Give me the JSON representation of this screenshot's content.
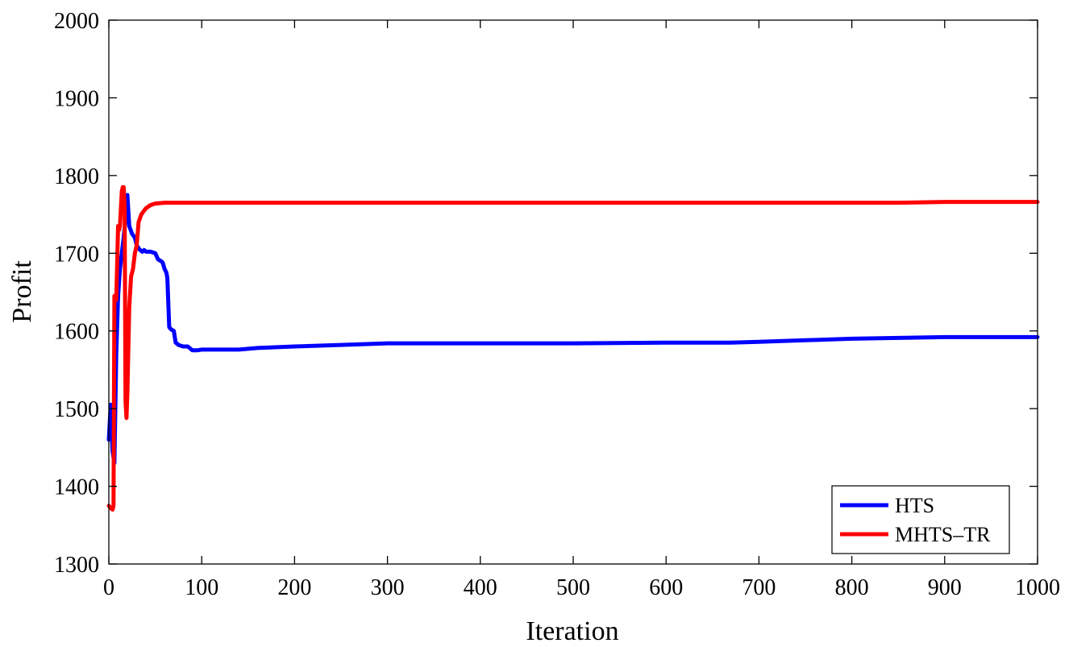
{
  "chart_data": {
    "type": "line",
    "title": "",
    "xlabel": "Iteration",
    "ylabel": "Profit",
    "xlim": [
      0,
      1000
    ],
    "ylim": [
      1300,
      2000
    ],
    "xticks": [
      0,
      100,
      200,
      300,
      400,
      500,
      600,
      700,
      800,
      900,
      1000
    ],
    "yticks": [
      1300,
      1400,
      1500,
      1600,
      1700,
      1800,
      1900,
      2000
    ],
    "xtick_labels": [
      "0",
      "100",
      "200",
      "300",
      "400",
      "500",
      "600",
      "700",
      "800",
      "900",
      "1000"
    ],
    "ytick_labels": [
      "1300",
      "1400",
      "1500",
      "1600",
      "1700",
      "1800",
      "1900",
      "2000"
    ],
    "grid": false,
    "legend_position": "bottom-right",
    "series": [
      {
        "name": "HTS",
        "color": "#0000ff",
        "points": [
          [
            0,
            1460
          ],
          [
            2,
            1505
          ],
          [
            4,
            1445
          ],
          [
            6,
            1430
          ],
          [
            8,
            1570
          ],
          [
            10,
            1645
          ],
          [
            12,
            1680
          ],
          [
            14,
            1700
          ],
          [
            16,
            1720
          ],
          [
            18,
            1745
          ],
          [
            20,
            1775
          ],
          [
            22,
            1735
          ],
          [
            25,
            1725
          ],
          [
            28,
            1720
          ],
          [
            30,
            1710
          ],
          [
            33,
            1705
          ],
          [
            36,
            1702
          ],
          [
            38,
            1704
          ],
          [
            40,
            1702
          ],
          [
            45,
            1702
          ],
          [
            50,
            1700
          ],
          [
            53,
            1692
          ],
          [
            56,
            1690
          ],
          [
            58,
            1688
          ],
          [
            60,
            1680
          ],
          [
            62,
            1675
          ],
          [
            63,
            1668
          ],
          [
            65,
            1605
          ],
          [
            67,
            1602
          ],
          [
            70,
            1600
          ],
          [
            72,
            1585
          ],
          [
            75,
            1582
          ],
          [
            80,
            1580
          ],
          [
            85,
            1580
          ],
          [
            90,
            1575
          ],
          [
            95,
            1575
          ],
          [
            100,
            1576
          ],
          [
            120,
            1576
          ],
          [
            140,
            1576
          ],
          [
            160,
            1578
          ],
          [
            200,
            1580
          ],
          [
            250,
            1582
          ],
          [
            300,
            1584
          ],
          [
            400,
            1584
          ],
          [
            500,
            1584
          ],
          [
            600,
            1585
          ],
          [
            670,
            1585
          ],
          [
            700,
            1586
          ],
          [
            750,
            1588
          ],
          [
            800,
            1590
          ],
          [
            850,
            1591
          ],
          [
            900,
            1592
          ],
          [
            950,
            1592
          ],
          [
            1000,
            1592
          ]
        ]
      },
      {
        "name": "MHTS–TR",
        "color": "#ff0000",
        "points": [
          [
            0,
            1375
          ],
          [
            2,
            1372
          ],
          [
            4,
            1370
          ],
          [
            5,
            1375
          ],
          [
            6,
            1645
          ],
          [
            7,
            1645
          ],
          [
            8,
            1640
          ],
          [
            10,
            1735
          ],
          [
            11,
            1730
          ],
          [
            12,
            1735
          ],
          [
            14,
            1780
          ],
          [
            15,
            1785
          ],
          [
            16,
            1785
          ],
          [
            17,
            1760
          ],
          [
            18,
            1510
          ],
          [
            19,
            1488
          ],
          [
            20,
            1520
          ],
          [
            22,
            1630
          ],
          [
            24,
            1670
          ],
          [
            26,
            1680
          ],
          [
            28,
            1700
          ],
          [
            30,
            1710
          ],
          [
            32,
            1740
          ],
          [
            35,
            1750
          ],
          [
            38,
            1755
          ],
          [
            40,
            1758
          ],
          [
            45,
            1762
          ],
          [
            50,
            1764
          ],
          [
            60,
            1765
          ],
          [
            100,
            1765
          ],
          [
            200,
            1765
          ],
          [
            300,
            1765
          ],
          [
            400,
            1765
          ],
          [
            500,
            1765
          ],
          [
            600,
            1765
          ],
          [
            700,
            1765
          ],
          [
            800,
            1765
          ],
          [
            850,
            1765
          ],
          [
            900,
            1766
          ],
          [
            950,
            1766
          ],
          [
            1000,
            1766
          ]
        ]
      }
    ]
  }
}
